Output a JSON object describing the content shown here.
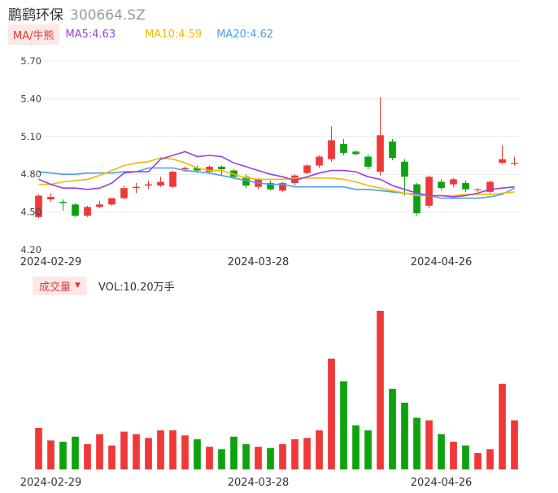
{
  "header": {
    "name": "鹏鹞环保",
    "code": "300664.SZ"
  },
  "indicators": {
    "ma_button": "MA/牛熊",
    "ma5": "MA5:4.63",
    "ma10": "MA10:4.59",
    "ma20": "MA20:4.62",
    "vol_button": "成交量",
    "vol_value": "VOL:10.20万手"
  },
  "colors": {
    "up": "#f03838",
    "down": "#0ea30e",
    "ma5": "#9b3fe0",
    "ma10": "#f5b800",
    "ma20": "#4d9ee8"
  },
  "chart_data": {
    "type": "candlestick",
    "yticks": [
      "5.70",
      "5.40",
      "5.10",
      "4.80",
      "4.50",
      "4.20"
    ],
    "ylim": [
      4.2,
      5.7
    ],
    "xticks": [
      "2024-02-29",
      "2024-03-28",
      "2024-04-26"
    ],
    "xtick_index": [
      1,
      18,
      33
    ],
    "candles": [
      {
        "o": 4.46,
        "c": 4.63,
        "h": 4.64,
        "l": 4.45,
        "v": 3.3
      },
      {
        "o": 4.6,
        "c": 4.62,
        "h": 4.65,
        "l": 4.58,
        "v": 2.3
      },
      {
        "o": 4.58,
        "c": 4.57,
        "h": 4.6,
        "l": 4.51,
        "v": 2.2
      },
      {
        "o": 4.56,
        "c": 4.47,
        "h": 4.57,
        "l": 4.46,
        "v": 2.6
      },
      {
        "o": 4.47,
        "c": 4.54,
        "h": 4.55,
        "l": 4.46,
        "v": 2.0
      },
      {
        "o": 4.54,
        "c": 4.56,
        "h": 4.59,
        "l": 4.53,
        "v": 2.8
      },
      {
        "o": 4.56,
        "c": 4.61,
        "h": 4.61,
        "l": 4.55,
        "v": 1.9
      },
      {
        "o": 4.61,
        "c": 4.69,
        "h": 4.71,
        "l": 4.6,
        "v": 3.0
      },
      {
        "o": 4.69,
        "c": 4.7,
        "h": 4.73,
        "l": 4.65,
        "v": 2.8
      },
      {
        "o": 4.71,
        "c": 4.72,
        "h": 4.75,
        "l": 4.68,
        "v": 2.5
      },
      {
        "o": 4.71,
        "c": 4.74,
        "h": 4.78,
        "l": 4.7,
        "v": 3.1
      },
      {
        "o": 4.7,
        "c": 4.82,
        "h": 4.83,
        "l": 4.69,
        "v": 3.1
      },
      {
        "o": 4.84,
        "c": 4.85,
        "h": 4.86,
        "l": 4.82,
        "v": 2.7
      },
      {
        "o": 4.85,
        "c": 4.83,
        "h": 4.87,
        "l": 4.81,
        "v": 2.4
      },
      {
        "o": 4.82,
        "c": 4.86,
        "h": 4.87,
        "l": 4.8,
        "v": 1.8
      },
      {
        "o": 4.86,
        "c": 4.84,
        "h": 4.87,
        "l": 4.79,
        "v": 1.6
      },
      {
        "o": 4.83,
        "c": 4.78,
        "h": 4.84,
        "l": 4.76,
        "v": 2.6
      },
      {
        "o": 4.78,
        "c": 4.71,
        "h": 4.8,
        "l": 4.69,
        "v": 2.0
      },
      {
        "o": 4.7,
        "c": 4.76,
        "h": 4.77,
        "l": 4.68,
        "v": 1.8
      },
      {
        "o": 4.73,
        "c": 4.68,
        "h": 4.75,
        "l": 4.67,
        "v": 1.7
      },
      {
        "o": 4.67,
        "c": 4.73,
        "h": 4.74,
        "l": 4.66,
        "v": 2.0
      },
      {
        "o": 4.73,
        "c": 4.79,
        "h": 4.8,
        "l": 4.71,
        "v": 2.4
      },
      {
        "o": 4.81,
        "c": 4.87,
        "h": 4.88,
        "l": 4.8,
        "v": 2.5
      },
      {
        "o": 4.87,
        "c": 4.94,
        "h": 4.95,
        "l": 4.85,
        "v": 3.1
      },
      {
        "o": 4.92,
        "c": 5.07,
        "h": 5.18,
        "l": 4.9,
        "v": 8.8
      },
      {
        "o": 5.04,
        "c": 4.97,
        "h": 5.08,
        "l": 4.95,
        "v": 7.0
      },
      {
        "o": 4.98,
        "c": 4.96,
        "h": 4.99,
        "l": 4.95,
        "v": 3.5
      },
      {
        "o": 4.94,
        "c": 4.86,
        "h": 4.96,
        "l": 4.84,
        "v": 3.1
      },
      {
        "o": 4.82,
        "c": 5.11,
        "h": 5.41,
        "l": 4.79,
        "v": 12.6
      },
      {
        "o": 5.06,
        "c": 4.93,
        "h": 5.08,
        "l": 4.91,
        "v": 6.4
      },
      {
        "o": 4.9,
        "c": 4.78,
        "h": 4.92,
        "l": 4.63,
        "v": 5.3
      },
      {
        "o": 4.72,
        "c": 4.49,
        "h": 4.73,
        "l": 4.47,
        "v": 4.1
      },
      {
        "o": 4.55,
        "c": 4.78,
        "h": 4.79,
        "l": 4.53,
        "v": 3.9
      },
      {
        "o": 4.74,
        "c": 4.69,
        "h": 4.76,
        "l": 4.67,
        "v": 2.8
      },
      {
        "o": 4.72,
        "c": 4.76,
        "h": 4.77,
        "l": 4.7,
        "v": 2.2
      },
      {
        "o": 4.73,
        "c": 4.68,
        "h": 4.75,
        "l": 4.66,
        "v": 1.9
      },
      {
        "o": 4.68,
        "c": 4.68,
        "h": 4.69,
        "l": 4.66,
        "v": 1.3
      },
      {
        "o": 4.66,
        "c": 4.74,
        "h": 4.75,
        "l": 4.65,
        "v": 1.6
      },
      {
        "o": 4.89,
        "c": 4.92,
        "h": 5.03,
        "l": 4.88,
        "v": 6.8
      },
      {
        "o": 4.89,
        "c": 4.89,
        "h": 4.94,
        "l": 4.87,
        "v": 3.9
      }
    ],
    "ma5": [
      4.76,
      4.72,
      4.69,
      4.69,
      4.68,
      4.69,
      4.73,
      4.81,
      4.82,
      4.82,
      4.92,
      4.95,
      4.98,
      4.94,
      4.95,
      4.94,
      4.89,
      4.86,
      4.83,
      4.8,
      4.78,
      4.75,
      4.78,
      4.81,
      4.83,
      4.83,
      4.82,
      4.78,
      4.76,
      4.71,
      4.68,
      4.65,
      4.63,
      4.63,
      4.62,
      4.63,
      4.65,
      4.68,
      4.69,
      4.7
    ],
    "ma10": [
      4.72,
      4.72,
      4.74,
      4.75,
      4.76,
      4.79,
      4.83,
      4.87,
      4.89,
      4.9,
      4.93,
      4.92,
      4.89,
      4.85,
      4.83,
      4.83,
      4.8,
      4.77,
      4.76,
      4.76,
      4.76,
      4.77,
      4.77,
      4.77,
      4.77,
      4.76,
      4.74,
      4.71,
      4.69,
      4.67,
      4.65,
      4.63,
      4.63,
      4.63,
      4.63,
      4.64,
      4.64,
      4.64,
      4.65,
      4.66
    ],
    "ma20": [
      4.82,
      4.81,
      4.8,
      4.8,
      4.81,
      4.81,
      4.81,
      4.82,
      4.82,
      4.85,
      4.85,
      4.85,
      4.83,
      4.82,
      4.81,
      4.79,
      4.77,
      4.75,
      4.73,
      4.72,
      4.72,
      4.7,
      4.7,
      4.7,
      4.7,
      4.7,
      4.68,
      4.68,
      4.67,
      4.66,
      4.65,
      4.64,
      4.63,
      4.61,
      4.61,
      4.61,
      4.61,
      4.62,
      4.64,
      4.69
    ]
  }
}
